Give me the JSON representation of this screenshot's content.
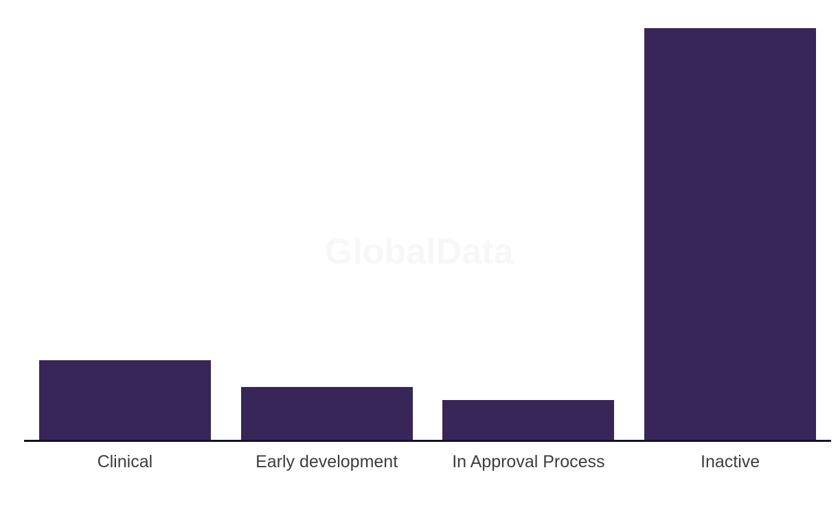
{
  "watermark": {
    "text": "GlobalData",
    "color": "#f7f7f7"
  },
  "axis": {
    "line_color": "#12122b"
  },
  "labels": {
    "color": "#3d3d3d"
  },
  "chart_data": {
    "type": "bar",
    "categories": [
      "Clinical",
      "Early development",
      "In Approval Process",
      "Inactive"
    ],
    "values": [
      6,
      4,
      3,
      31
    ],
    "title": "",
    "xlabel": "",
    "ylabel": "",
    "ylim": [
      0,
      31
    ],
    "grid": false,
    "legend": false,
    "y_axis_visible": false,
    "bar_color": "#372657",
    "background": "#ffffff",
    "watermark": "GlobalData"
  }
}
